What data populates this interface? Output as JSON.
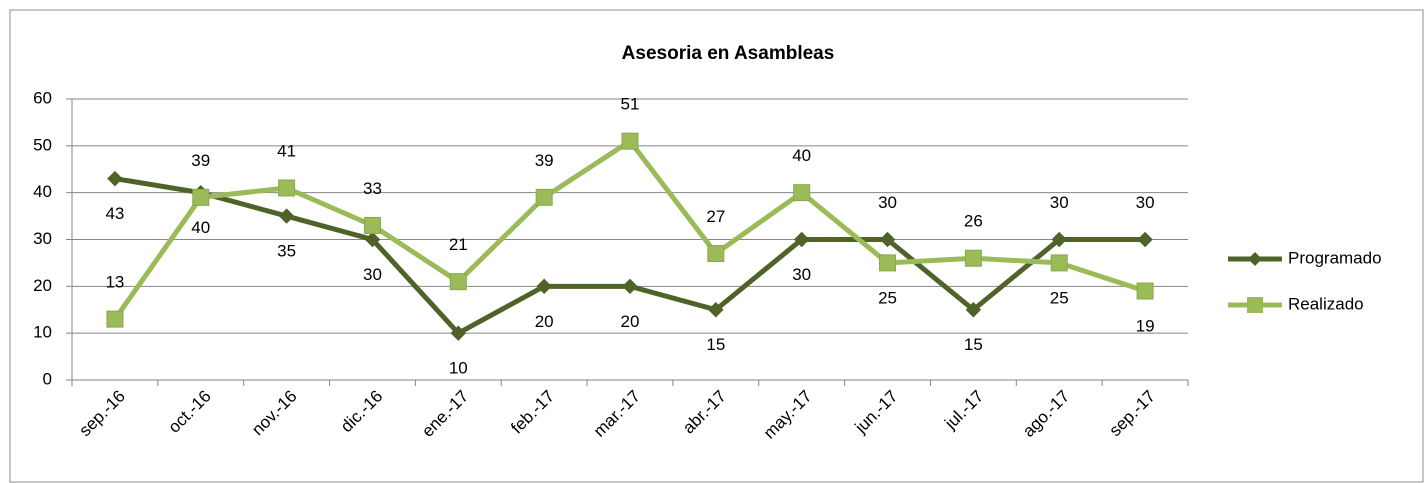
{
  "chart_data": {
    "type": "line",
    "title": "Asesoria en Asambleas",
    "categories": [
      "sep.-16",
      "oct.-16",
      "nov.-16",
      "dic.-16",
      "ene.-17",
      "feb.-17",
      "mar.-17",
      "abr.-17",
      "may.-17",
      "jun.-17",
      "jul.-17",
      "ago.-17",
      "sep.-17"
    ],
    "series": [
      {
        "name": "Programado",
        "color": "#4f6228",
        "marker": "diamond",
        "values": [
          43,
          40,
          35,
          30,
          10,
          20,
          20,
          15,
          30,
          30,
          15,
          30,
          30
        ]
      },
      {
        "name": "Realizado",
        "color": "#9bbb59",
        "marker": "square",
        "values": [
          13,
          39,
          41,
          33,
          21,
          39,
          51,
          27,
          40,
          25,
          26,
          25,
          19
        ]
      }
    ],
    "ylim": [
      0,
      60
    ],
    "yticks": [
      0,
      10,
      20,
      30,
      40,
      50,
      60
    ],
    "grid": true,
    "legend": "right"
  }
}
